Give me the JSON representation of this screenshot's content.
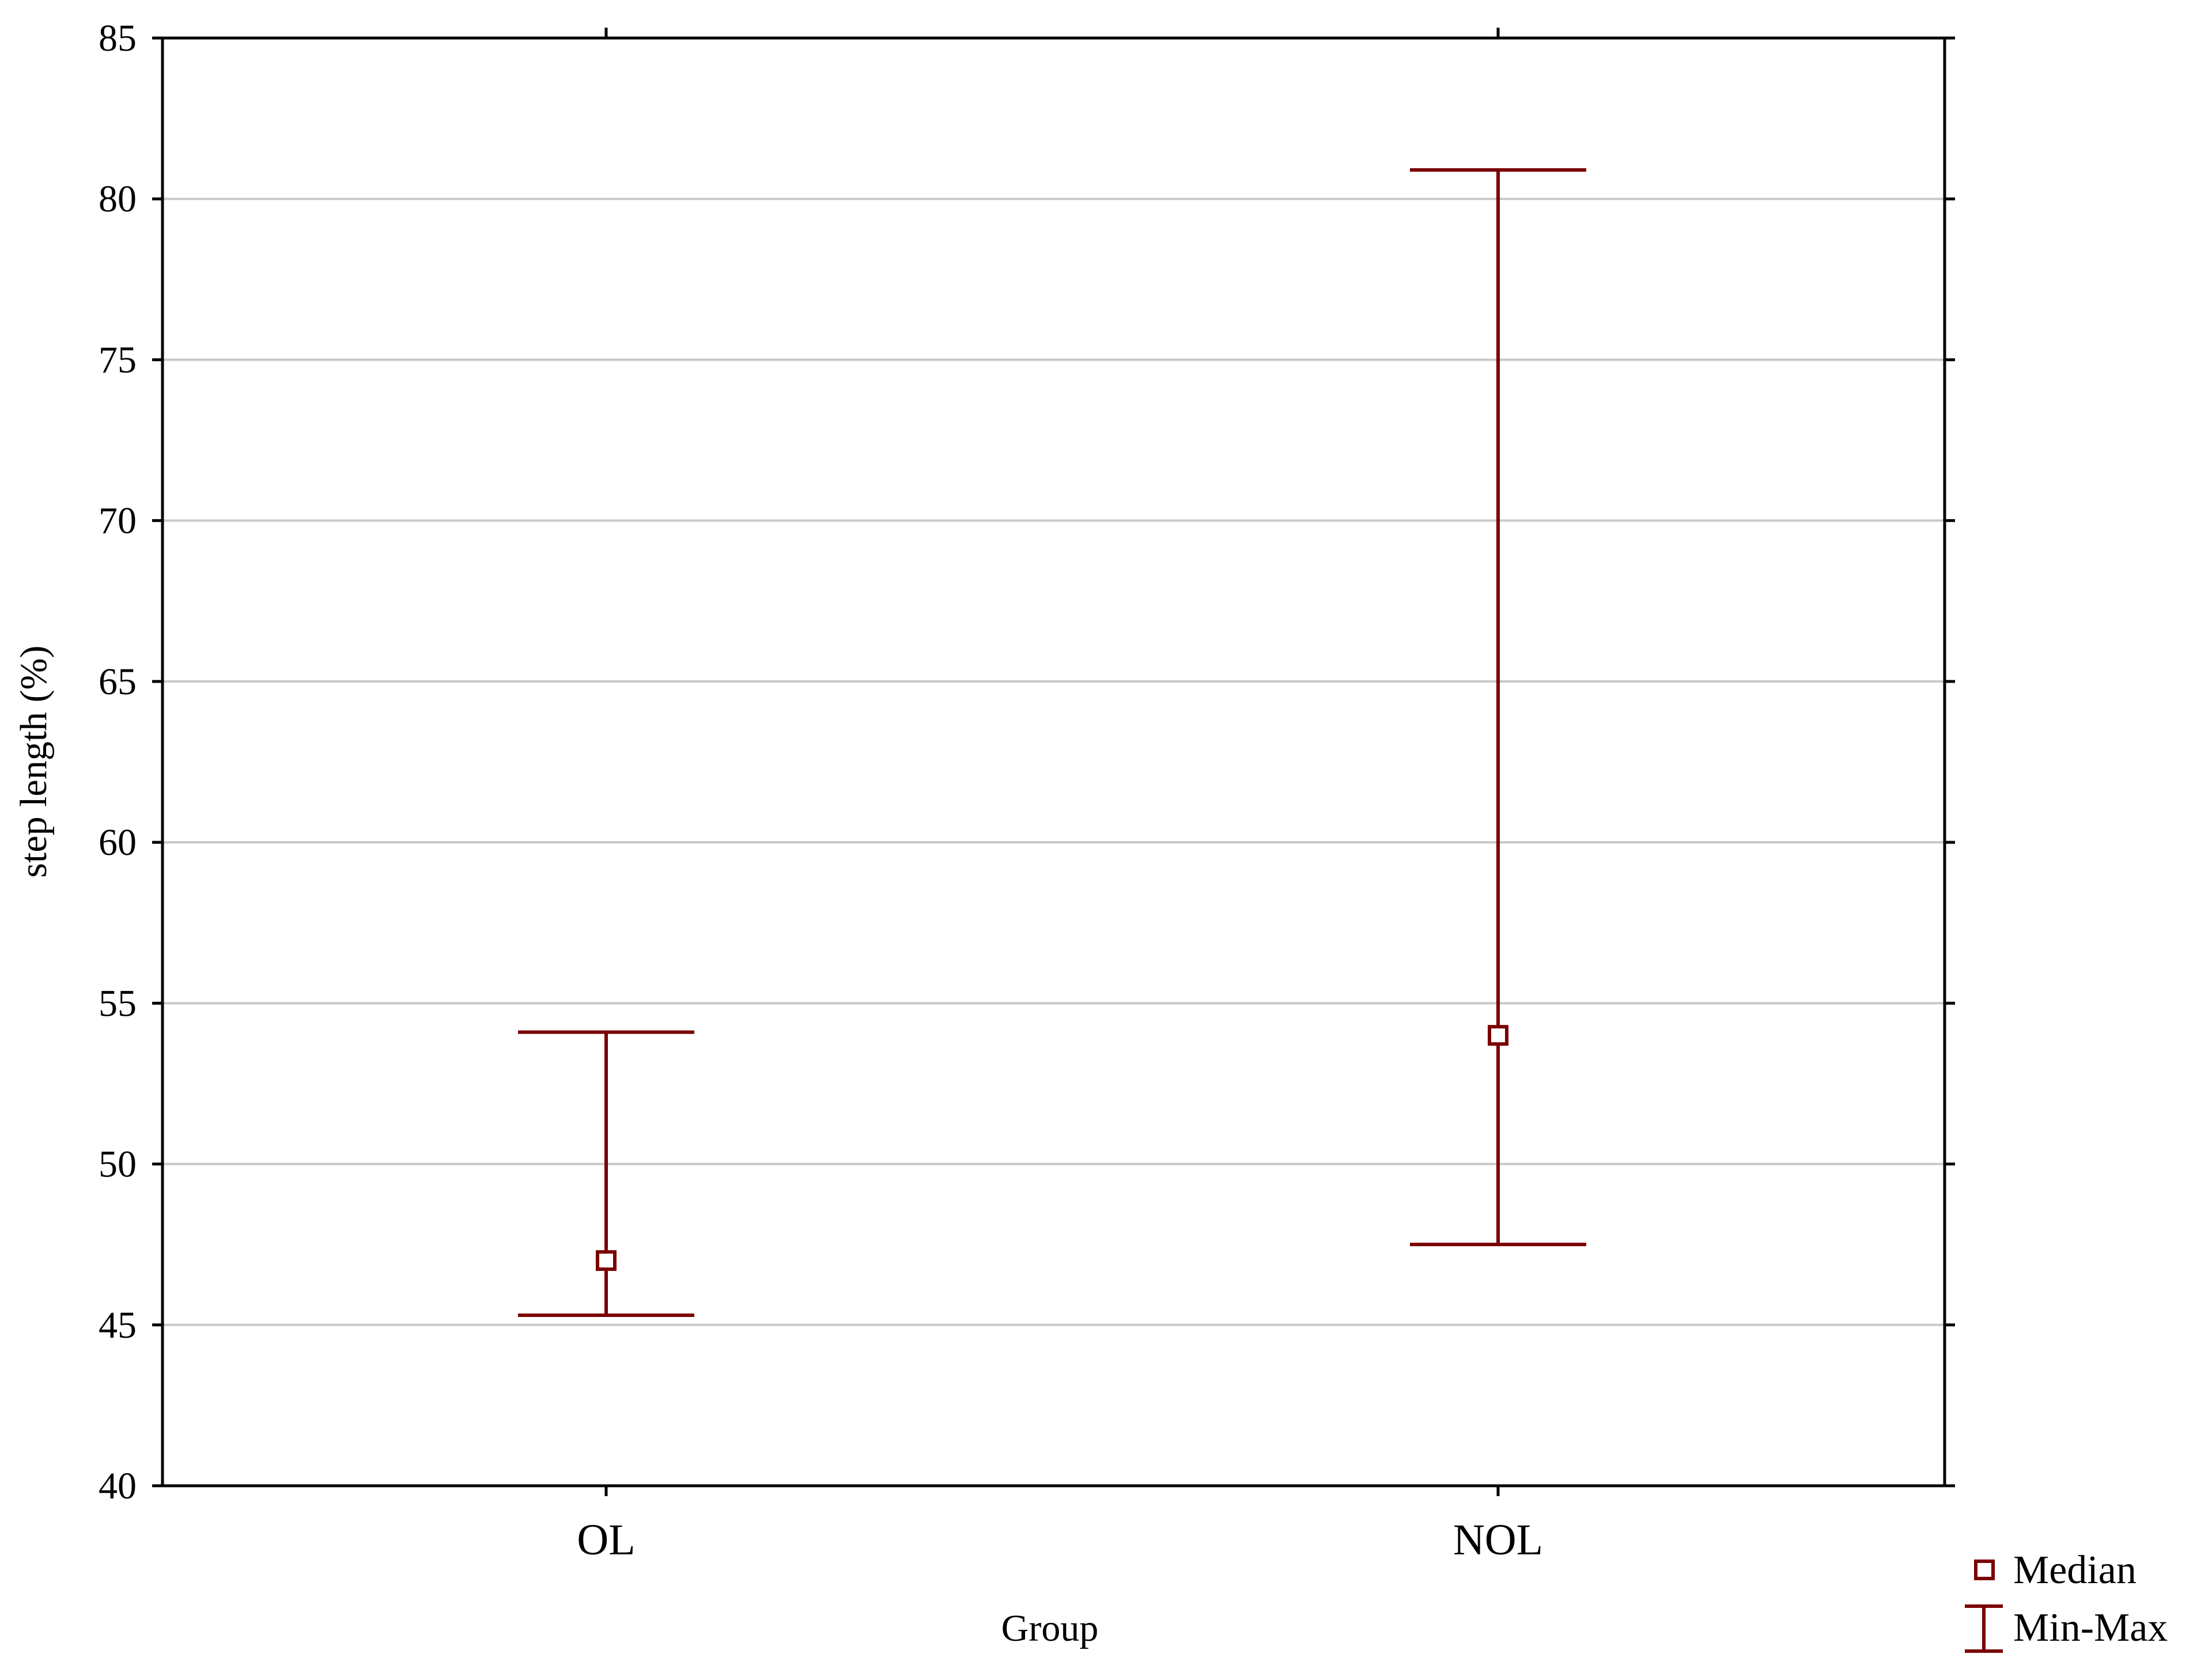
{
  "chart_data": {
    "type": "errorbar",
    "xlabel": "Group",
    "ylabel": "step length (%)",
    "ylim": [
      40,
      85
    ],
    "yticks": [
      40,
      45,
      50,
      55,
      60,
      65,
      70,
      75,
      80,
      85
    ],
    "categories": [
      "OL",
      "NOL"
    ],
    "series": [
      {
        "name": "Median",
        "values": [
          47,
          54
        ]
      }
    ],
    "ranges": [
      {
        "category": "OL",
        "min": 45.3,
        "max": 54.1
      },
      {
        "category": "NOL",
        "min": 47.5,
        "max": 80.9
      }
    ],
    "legend": {
      "position": "bottom-right",
      "items": [
        {
          "label": "Median",
          "marker": "square"
        },
        {
          "label": "Min-Max",
          "marker": "whisker"
        }
      ]
    },
    "grid": true,
    "colors": {
      "mark": "#7a0000",
      "grid": "#c8c8c8",
      "axis": "#000000"
    }
  }
}
